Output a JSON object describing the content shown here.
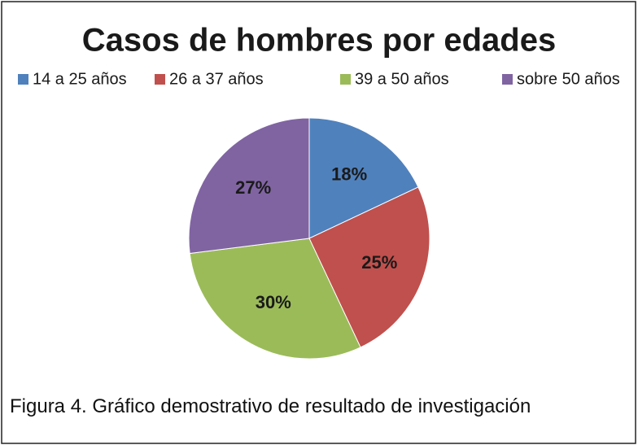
{
  "chart_data": {
    "type": "pie",
    "title": "Casos de hombres por edades",
    "categories": [
      "14 a 25 años",
      "26 a 37 años",
      "39 a 50 años",
      "sobre 50 años"
    ],
    "values": [
      18,
      25,
      30,
      27
    ],
    "value_labels": [
      "18%",
      "25%",
      "30%",
      "27%"
    ],
    "colors": [
      "#4f81bd",
      "#c0504d",
      "#9bbb59",
      "#8064a2"
    ],
    "legend": "top"
  },
  "caption": "Figura 4. Gráfico demostrativo de resultado de investigación"
}
